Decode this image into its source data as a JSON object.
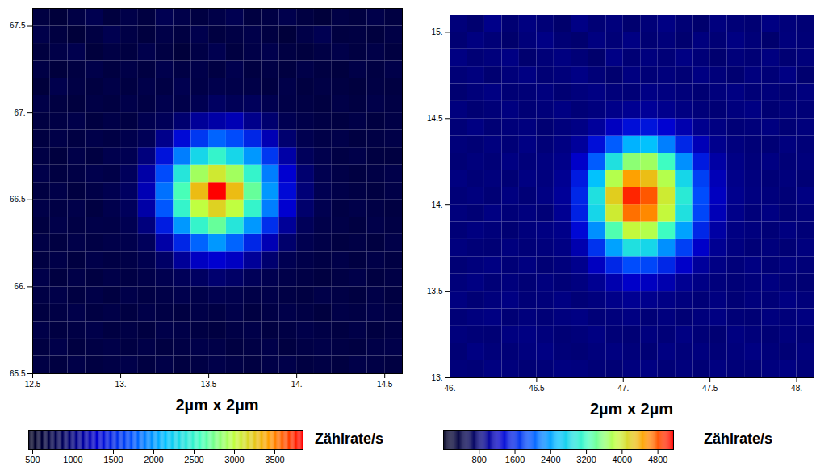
{
  "chart_data": [
    {
      "type": "heatmap",
      "xlabel": "2µm x 2µm",
      "colorbar_label": "Zählrate/s",
      "xlim": [
        12.5,
        14.6
      ],
      "ylim": [
        65.5,
        67.6
      ],
      "xticks": [
        12.5,
        {
          "value": 13,
          "label": "13."
        },
        13.5,
        {
          "value": 14,
          "label": "14."
        },
        14.5
      ],
      "yticks": [
        65.5,
        {
          "value": 66,
          "label": "66."
        },
        66.5,
        {
          "value": 67,
          "label": "67."
        },
        67.5
      ],
      "x_edges": [
        12.5,
        12.6,
        12.7,
        12.8,
        12.9,
        13.0,
        13.1,
        13.2,
        13.3,
        13.4,
        13.5,
        13.6,
        13.7,
        13.8,
        13.9,
        14.0,
        14.1,
        14.2,
        14.3,
        14.4,
        14.5,
        14.6
      ],
      "y_edges": [
        65.5,
        65.6,
        65.7,
        65.8,
        65.9,
        66.0,
        66.1,
        66.2,
        66.3,
        66.4,
        66.5,
        66.6,
        66.7,
        66.8,
        66.9,
        67.0,
        67.1,
        67.2,
        67.3,
        67.4,
        67.5,
        67.6
      ],
      "cells": [
        [
          720,
          690,
          740,
          700,
          730,
          760,
          700,
          740,
          690,
          720,
          760,
          730,
          700,
          740,
          760,
          700,
          720,
          690,
          750,
          730,
          700
        ],
        [
          700,
          760,
          690,
          720,
          750,
          710,
          740,
          700,
          720,
          760,
          740,
          700,
          720,
          760,
          690,
          730,
          750,
          720,
          700,
          740,
          760
        ],
        [
          740,
          700,
          720,
          760,
          700,
          730,
          690,
          760,
          740,
          710,
          690,
          730,
          750,
          700,
          720,
          760,
          730,
          700,
          740,
          690,
          720
        ],
        [
          690,
          720,
          760,
          710,
          740,
          700,
          750,
          720,
          700,
          740,
          720,
          760,
          700,
          730,
          760,
          720,
          680,
          740,
          720,
          760,
          730
        ],
        [
          720,
          750,
          700,
          740,
          690,
          760,
          720,
          740,
          780,
          760,
          800,
          780,
          740,
          760,
          720,
          700,
          750,
          730,
          690,
          740,
          700
        ],
        [
          760,
          690,
          740,
          700,
          750,
          720,
          760,
          800,
          860,
          900,
          950,
          920,
          860,
          800,
          760,
          730,
          690,
          720,
          760,
          700,
          730
        ],
        [
          700,
          740,
          690,
          760,
          720,
          740,
          800,
          920,
          1100,
          1250,
          1300,
          1250,
          1100,
          950,
          820,
          760,
          720,
          750,
          700,
          740,
          710
        ],
        [
          730,
          700,
          750,
          720,
          760,
          780,
          880,
          1150,
          1500,
          1800,
          2000,
          1800,
          1500,
          1200,
          940,
          800,
          740,
          700,
          730,
          690,
          750
        ],
        [
          690,
          760,
          720,
          750,
          740,
          820,
          1000,
          1450,
          2000,
          2500,
          2700,
          2400,
          2000,
          1550,
          1100,
          870,
          760,
          740,
          700,
          760,
          720
        ],
        [
          740,
          720,
          760,
          700,
          780,
          880,
          1150,
          1750,
          2500,
          3000,
          3200,
          3000,
          2500,
          1900,
          1300,
          940,
          800,
          720,
          760,
          730,
          700
        ],
        [
          700,
          750,
          690,
          740,
          800,
          900,
          1200,
          1850,
          2600,
          3300,
          3850,
          3300,
          2700,
          2000,
          1350,
          980,
          820,
          760,
          720,
          700,
          740
        ],
        [
          760,
          700,
          730,
          780,
          740,
          880,
          1150,
          1700,
          2400,
          2900,
          3100,
          2900,
          2500,
          1900,
          1300,
          950,
          800,
          740,
          700,
          730,
          760
        ],
        [
          720,
          680,
          750,
          700,
          790,
          820,
          1000,
          1400,
          1900,
          2300,
          2500,
          2300,
          2000,
          1600,
          1150,
          880,
          780,
          720,
          760,
          700,
          690
        ],
        [
          690,
          740,
          710,
          760,
          720,
          780,
          850,
          1050,
          1350,
          1600,
          1800,
          1700,
          1500,
          1200,
          950,
          800,
          740,
          760,
          700,
          720,
          740
        ],
        [
          700,
          720,
          760,
          690,
          740,
          710,
          800,
          860,
          950,
          1100,
          1150,
          1200,
          1050,
          950,
          820,
          760,
          720,
          700,
          740,
          690,
          730
        ],
        [
          740,
          700,
          680,
          730,
          700,
          760,
          720,
          790,
          760,
          820,
          900,
          850,
          880,
          800,
          740,
          720,
          690,
          740,
          700,
          760,
          720
        ],
        [
          650,
          780,
          720,
          690,
          740,
          700,
          760,
          720,
          800,
          740,
          780,
          760,
          740,
          700,
          760,
          690,
          730,
          710,
          680,
          720,
          700
        ],
        [
          720,
          660,
          700,
          760,
          690,
          740,
          700,
          780,
          720,
          760,
          710,
          790,
          700,
          730,
          690,
          750,
          700,
          680,
          740,
          710,
          760
        ],
        [
          680,
          740,
          790,
          660,
          720,
          690,
          770,
          710,
          650,
          730,
          800,
          690,
          740,
          780,
          710,
          680,
          720,
          760,
          700,
          740,
          690
        ],
        [
          760,
          690,
          640,
          710,
          800,
          730,
          680,
          740,
          700,
          780,
          690,
          720,
          760,
          700,
          650,
          740,
          820,
          690,
          710,
          680,
          730
        ],
        [
          700,
          650,
          720,
          800,
          680,
          750,
          690,
          820,
          760,
          700,
          740,
          810,
          690,
          720,
          780,
          700,
          650,
          730,
          690,
          760,
          700
        ]
      ],
      "clim": [
        450,
        3850
      ],
      "cticks": [
        500,
        1000,
        1500,
        2000,
        2500,
        3000,
        3500
      ],
      "colors": [
        "#000020",
        "#00005a",
        "#0000d0",
        "#0050ff",
        "#00c0ff",
        "#40ffc0",
        "#c0ff40",
        "#ffa000",
        "#ff0000"
      ]
    },
    {
      "type": "heatmap",
      "xlabel": "2µm x 2µm",
      "colorbar_label": "Zählrate/s",
      "xlim": [
        46.0,
        48.1
      ],
      "ylim": [
        13.0,
        15.1
      ],
      "xticks": [
        {
          "value": 46,
          "label": "46."
        },
        46.5,
        {
          "value": 47,
          "label": "47."
        },
        47.5,
        {
          "value": 48,
          "label": "48."
        }
      ],
      "yticks": [
        {
          "value": 13,
          "label": "13."
        },
        13.5,
        {
          "value": 14,
          "label": "14."
        },
        14.5,
        {
          "value": 15,
          "label": "15."
        }
      ],
      "x_edges": [
        46.0,
        46.1,
        46.2,
        46.3,
        46.4,
        46.5,
        46.6,
        46.7,
        46.8,
        46.9,
        47.0,
        47.1,
        47.2,
        47.3,
        47.4,
        47.5,
        47.6,
        47.7,
        47.8,
        47.9,
        48.0,
        48.1
      ],
      "y_edges": [
        13.0,
        13.1,
        13.2,
        13.3,
        13.4,
        13.5,
        13.6,
        13.7,
        13.8,
        13.9,
        14.0,
        14.1,
        14.2,
        14.3,
        14.4,
        14.5,
        14.6,
        14.7,
        14.8,
        14.9,
        15.0,
        15.1
      ],
      "cells": [
        [
          820,
          800,
          850,
          830,
          790,
          810,
          850,
          840,
          800,
          790,
          840,
          860,
          800,
          830,
          790,
          850,
          810,
          800,
          840,
          860,
          810
        ],
        [
          790,
          860,
          820,
          800,
          840,
          870,
          810,
          790,
          830,
          850,
          820,
          790,
          860,
          820,
          840,
          800,
          830,
          860,
          820,
          790,
          840
        ],
        [
          830,
          800,
          790,
          850,
          860,
          830,
          790,
          820,
          860,
          800,
          790,
          840,
          810,
          860,
          800,
          780,
          850,
          820,
          790,
          830,
          800
        ],
        [
          800,
          840,
          860,
          790,
          830,
          800,
          840,
          870,
          810,
          830,
          860,
          800,
          840,
          790,
          830,
          860,
          800,
          790,
          840,
          820,
          850
        ],
        [
          850,
          790,
          830,
          870,
          800,
          820,
          860,
          800,
          840,
          900,
          950,
          920,
          880,
          840,
          800,
          850,
          790,
          830,
          810,
          860,
          820
        ],
        [
          820,
          860,
          800,
          830,
          790,
          840,
          800,
          850,
          950,
          1100,
          1250,
          1200,
          1100,
          950,
          880,
          830,
          800,
          820,
          850,
          800,
          780
        ],
        [
          790,
          830,
          860,
          800,
          850,
          790,
          830,
          920,
          1200,
          1600,
          1900,
          1850,
          1600,
          1250,
          1000,
          880,
          820,
          860,
          800,
          840,
          810
        ],
        [
          840,
          800,
          790,
          840,
          810,
          830,
          870,
          1100,
          1700,
          2400,
          2900,
          2800,
          2300,
          1800,
          1250,
          950,
          850,
          800,
          830,
          790,
          840
        ],
        [
          800,
          850,
          820,
          780,
          830,
          860,
          900,
          1350,
          2300,
          3300,
          3900,
          3800,
          3200,
          2400,
          1600,
          1050,
          870,
          840,
          800,
          850,
          800
        ],
        [
          830,
          790,
          860,
          810,
          840,
          800,
          950,
          1550,
          2800,
          4000,
          4700,
          4600,
          3900,
          2900,
          1850,
          1150,
          900,
          820,
          860,
          790,
          820
        ],
        [
          810,
          840,
          790,
          850,
          800,
          870,
          980,
          1600,
          2900,
          4200,
          5000,
          4800,
          4000,
          3000,
          1900,
          1200,
          920,
          850,
          830,
          800,
          860
        ],
        [
          850,
          800,
          830,
          790,
          860,
          840,
          950,
          1500,
          2600,
          3800,
          4500,
          4300,
          3800,
          2800,
          1800,
          1150,
          900,
          840,
          800,
          830,
          790
        ],
        [
          790,
          830,
          800,
          860,
          820,
          850,
          900,
          1250,
          2000,
          2900,
          3600,
          3700,
          3200,
          2300,
          1500,
          1050,
          880,
          820,
          860,
          800,
          830
        ],
        [
          820,
          790,
          840,
          800,
          870,
          810,
          860,
          1000,
          1400,
          2000,
          2500,
          2600,
          2200,
          1600,
          1150,
          920,
          840,
          800,
          790,
          840,
          810
        ],
        [
          800,
          860,
          790,
          820,
          840,
          780,
          830,
          880,
          1000,
          1200,
          1400,
          1450,
          1300,
          1100,
          930,
          860,
          800,
          820,
          850,
          790,
          830
        ],
        [
          840,
          780,
          810,
          850,
          790,
          820,
          870,
          800,
          840,
          900,
          950,
          980,
          920,
          860,
          820,
          790,
          840,
          870,
          780,
          820,
          800
        ],
        [
          770,
          820,
          860,
          790,
          800,
          840,
          780,
          830,
          870,
          820,
          800,
          880,
          850,
          820,
          780,
          830,
          860,
          800,
          820,
          790,
          840
        ],
        [
          800,
          840,
          770,
          820,
          860,
          790,
          820,
          880,
          810,
          760,
          850,
          800,
          830,
          790,
          860,
          820,
          770,
          840,
          800,
          870,
          760
        ],
        [
          860,
          790,
          830,
          870,
          760,
          810,
          850,
          800,
          740,
          880,
          790,
          840,
          800,
          870,
          810,
          760,
          820,
          790,
          850,
          780,
          820
        ],
        [
          780,
          850,
          800,
          740,
          820,
          880,
          790,
          760,
          850,
          800,
          870,
          780,
          820,
          760,
          840,
          790,
          860,
          810,
          750,
          830,
          800
        ],
        [
          820,
          760,
          900,
          780,
          850,
          800,
          740,
          880,
          790,
          830,
          760,
          810,
          870,
          790,
          750,
          840,
          800,
          780,
          860,
          820,
          790
        ]
      ],
      "clim": [
        0,
        5150
      ],
      "cticks": [
        800,
        1600,
        2400,
        3200,
        4000,
        4800
      ],
      "colors": [
        "#000020",
        "#00005a",
        "#0000d0",
        "#0050ff",
        "#00c0ff",
        "#40ffc0",
        "#c0ff40",
        "#ffa000",
        "#ff0000"
      ]
    }
  ]
}
